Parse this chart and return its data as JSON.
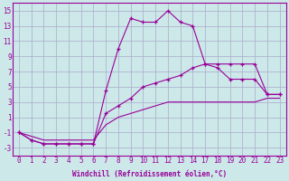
{
  "xlabel": "Windchill (Refroidissement éolien,°C)",
  "bg_color": "#cce8e8",
  "grid_color": "#aaaacc",
  "line_color": "#990099",
  "line1_x": [
    0,
    1,
    2,
    3,
    4,
    5,
    6,
    7,
    8,
    9,
    10,
    11,
    12,
    13,
    14,
    17,
    18,
    19,
    20,
    21,
    22,
    23
  ],
  "line1_y": [
    -1,
    -2,
    -2.5,
    -2.5,
    -2.5,
    -2.5,
    -2.5,
    4.5,
    10,
    14,
    13.5,
    13.5,
    15,
    13.5,
    13,
    8,
    8,
    8,
    8,
    8,
    4,
    4
  ],
  "line2_x": [
    0,
    1,
    2,
    3,
    4,
    5,
    6,
    7,
    8,
    9,
    10,
    11,
    12,
    13,
    14,
    17,
    18,
    19,
    20,
    21,
    22,
    23
  ],
  "line2_y": [
    -1,
    -2,
    -2.5,
    -2.5,
    -2.5,
    -2.5,
    -2.5,
    1.5,
    2.5,
    3.5,
    5,
    5.5,
    6,
    6.5,
    7.5,
    8,
    7.5,
    6,
    6,
    6,
    4,
    4
  ],
  "line3_x": [
    0,
    1,
    2,
    3,
    4,
    5,
    6,
    7,
    8,
    9,
    10,
    11,
    12,
    13,
    14,
    17,
    18,
    19,
    20,
    21,
    22,
    23
  ],
  "line3_y": [
    -1,
    -1.5,
    -2,
    -2,
    -2,
    -2,
    -2,
    0,
    1,
    1.5,
    2,
    2.5,
    3,
    3,
    3,
    3,
    3,
    3,
    3,
    3,
    3.5,
    3.5
  ],
  "ylim": [
    -4,
    16
  ],
  "yticks": [
    -3,
    -1,
    1,
    3,
    5,
    7,
    9,
    11,
    13,
    15
  ],
  "xticks": [
    0,
    1,
    2,
    3,
    4,
    5,
    6,
    7,
    8,
    9,
    10,
    11,
    12,
    13,
    14,
    17,
    18,
    19,
    20,
    21,
    22,
    23
  ],
  "xtick_labels": [
    "0",
    "1",
    "2",
    "3",
    "4",
    "5",
    "6",
    "7",
    "8",
    "9",
    "10",
    "11",
    "12",
    "13",
    "14",
    "17",
    "18",
    "19",
    "20",
    "21",
    "22",
    "23"
  ]
}
